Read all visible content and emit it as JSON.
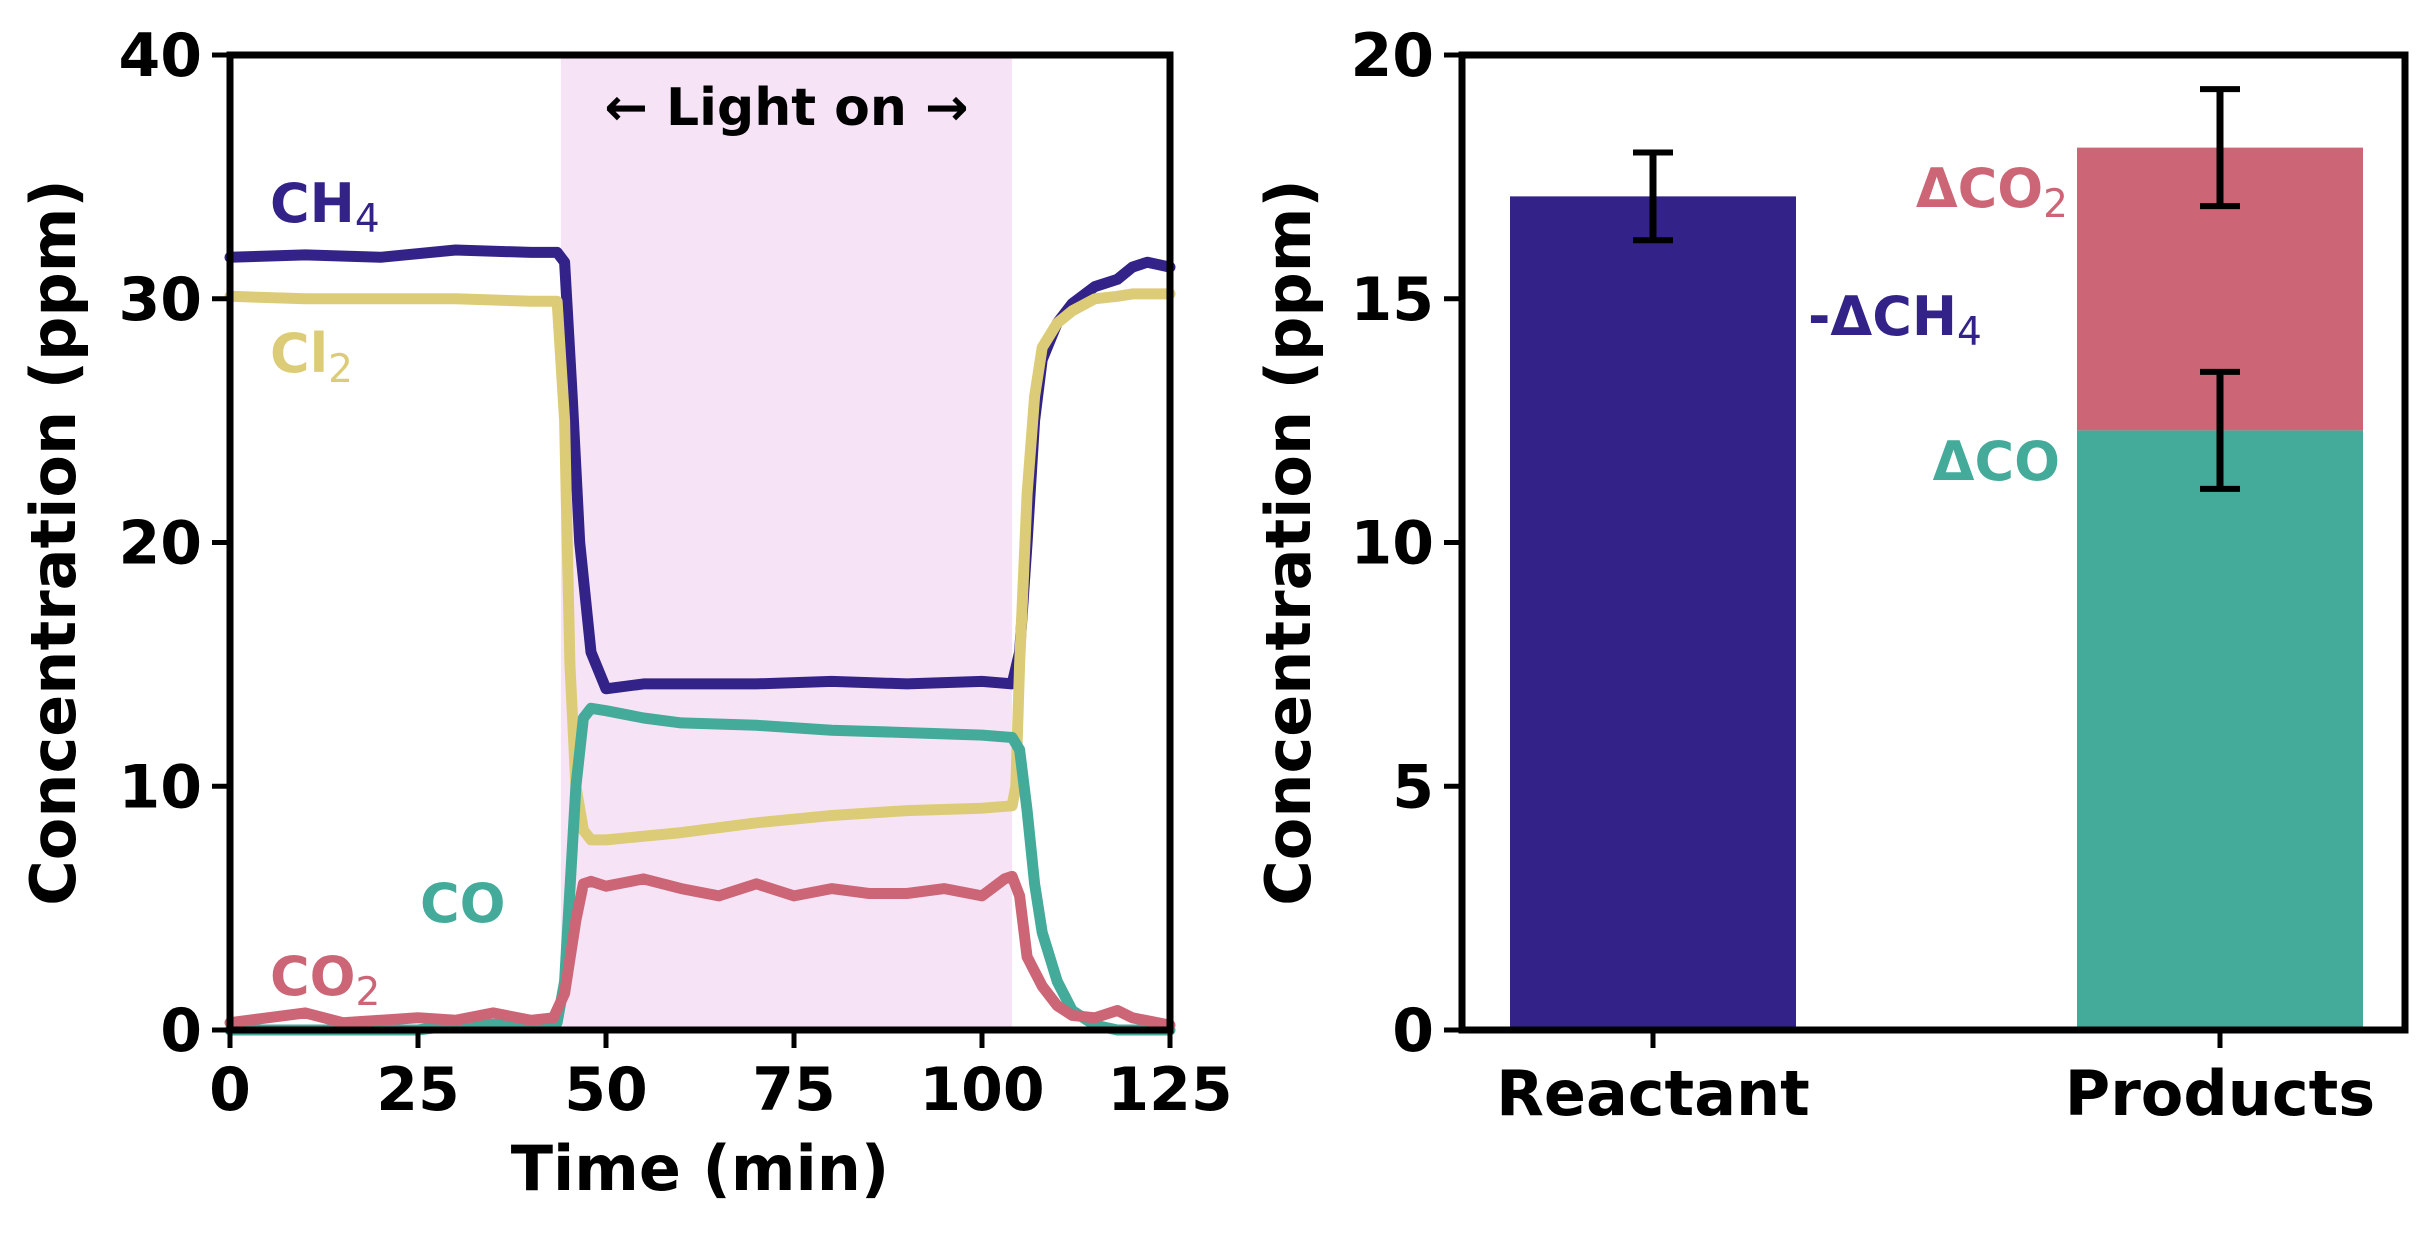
{
  "chart_data": [
    {
      "type": "line",
      "xlabel": "Time (min)",
      "ylabel": "Concentration (ppm)",
      "xlim": [
        0,
        125
      ],
      "ylim": [
        0,
        40
      ],
      "xticks": [
        0,
        25,
        50,
        75,
        100,
        125
      ],
      "yticks": [
        0,
        10,
        20,
        30,
        40
      ],
      "grid": false,
      "shaded_region": {
        "label": "← Light on →",
        "x": [
          44,
          104
        ],
        "color": "#f6e4f6"
      },
      "series": [
        {
          "name": "CH4",
          "label_main": "CH",
          "label_sub": "4",
          "color": "#332288",
          "x": [
            0,
            10,
            20,
            30,
            40,
            43.5,
            44.5,
            45.5,
            46.5,
            48,
            50,
            55,
            60,
            70,
            80,
            90,
            100,
            104,
            105,
            106,
            107,
            108,
            110,
            112,
            115,
            118,
            120,
            122,
            125
          ],
          "y": [
            31.7,
            31.8,
            31.7,
            32.0,
            31.9,
            31.9,
            31.5,
            26,
            20,
            15.5,
            14.0,
            14.2,
            14.2,
            14.2,
            14.3,
            14.2,
            14.3,
            14.2,
            15.5,
            20,
            25,
            27.5,
            29.0,
            29.8,
            30.5,
            30.8,
            31.3,
            31.5,
            31.3
          ]
        },
        {
          "name": "Cl2",
          "label_main": "Cl",
          "label_sub": "2",
          "color": "#ddcc77",
          "x": [
            0,
            10,
            20,
            30,
            40,
            43.5,
            44.5,
            45.2,
            46,
            47,
            48,
            50,
            60,
            70,
            80,
            90,
            100,
            104,
            104.5,
            105,
            106,
            107,
            108,
            110,
            112,
            115,
            118,
            120,
            125
          ],
          "y": [
            30.1,
            30.0,
            30.0,
            30.0,
            29.9,
            29.9,
            25,
            15,
            10,
            8.2,
            7.8,
            7.8,
            8.1,
            8.5,
            8.8,
            9.0,
            9.1,
            9.2,
            10,
            15,
            22,
            26,
            28,
            29,
            29.5,
            30.0,
            30.1,
            30.2,
            30.2
          ]
        },
        {
          "name": "CO",
          "label_main": "CO",
          "label_sub": "",
          "color": "#44aa99",
          "x": [
            0,
            25,
            30,
            43.5,
            44.5,
            46,
            47,
            48,
            50,
            55,
            60,
            70,
            80,
            90,
            100,
            104,
            105,
            106,
            107,
            108,
            110,
            112,
            115,
            118,
            120,
            125
          ],
          "y": [
            0,
            0,
            0.2,
            0.3,
            2,
            10,
            12.8,
            13.2,
            13.1,
            12.8,
            12.6,
            12.5,
            12.3,
            12.2,
            12.1,
            12.0,
            11.5,
            9,
            6,
            4,
            2,
            0.8,
            0.2,
            0,
            0,
            0
          ]
        },
        {
          "name": "CO2",
          "label_main": "CO",
          "label_sub": "2",
          "color": "#cc6677",
          "x": [
            0,
            5,
            10,
            15,
            20,
            25,
            30,
            35,
            40,
            43,
            44.5,
            46,
            47,
            48,
            50,
            55,
            60,
            65,
            70,
            75,
            80,
            85,
            90,
            95,
            100,
            103,
            104,
            105,
            106,
            108,
            110,
            112,
            115,
            118,
            120,
            125
          ],
          "y": [
            0.3,
            0.5,
            0.7,
            0.3,
            0.4,
            0.5,
            0.4,
            0.7,
            0.4,
            0.5,
            1.5,
            4.5,
            6.0,
            6.1,
            5.9,
            6.2,
            5.8,
            5.5,
            6.0,
            5.5,
            5.8,
            5.6,
            5.6,
            5.8,
            5.5,
            6.2,
            6.3,
            5.5,
            3,
            1.8,
            1.0,
            0.6,
            0.5,
            0.8,
            0.5,
            0.2
          ]
        }
      ]
    },
    {
      "type": "bar",
      "stacked": true,
      "ylabel": "Concentration (ppm)",
      "xlabel": "",
      "ylim": [
        0,
        20
      ],
      "yticks": [
        0,
        5,
        10,
        15,
        20
      ],
      "categories": [
        "Reactant",
        "Products"
      ],
      "grid": false,
      "bars": [
        {
          "category": "Reactant",
          "name": "-ΔCH4",
          "label_main": "-ΔCH",
          "label_sub": "4",
          "color": "#332288",
          "bottom": 0,
          "value": 17.1,
          "error": 0.9
        },
        {
          "category": "Products",
          "name": "ΔCO",
          "label_main": "ΔCO",
          "label_sub": "",
          "color": "#44aa99",
          "bottom": 0,
          "value": 12.3,
          "error": 1.2
        },
        {
          "category": "Products",
          "name": "ΔCO2",
          "label_main": "ΔCO",
          "label_sub": "2",
          "color": "#cc6677",
          "bottom": 12.3,
          "value": 5.8,
          "error": 1.2
        }
      ]
    }
  ]
}
